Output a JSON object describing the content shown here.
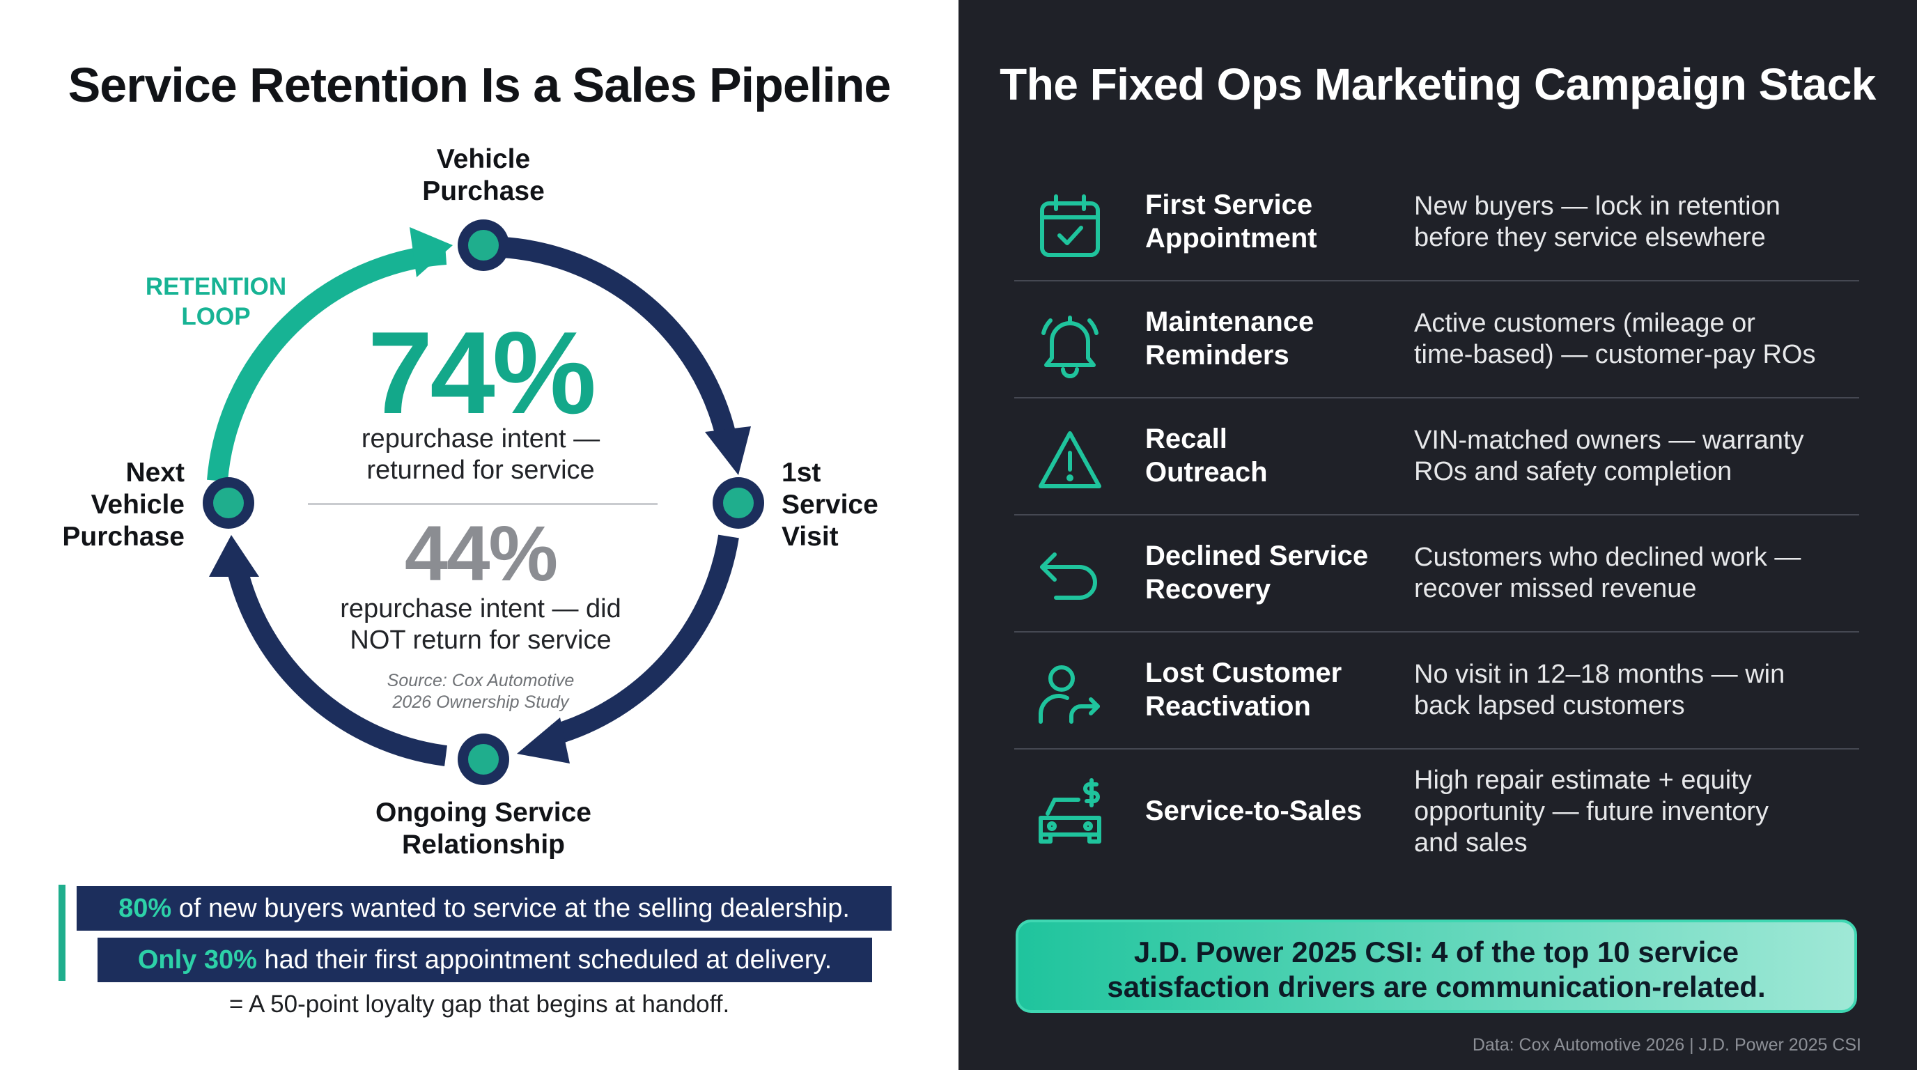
{
  "left": {
    "title": "Service Retention Is a Sales Pipeline",
    "nodes": {
      "top": [
        "Vehicle",
        "Purchase"
      ],
      "right": [
        "1st",
        "Service",
        "Visit"
      ],
      "bottom": [
        "Ongoing Service",
        "Relationship"
      ],
      "left": [
        "Next",
        "Vehicle",
        "Purchase"
      ]
    },
    "loop_label": [
      "RETENTION",
      "LOOP"
    ],
    "stat1": {
      "value": "74%",
      "desc": [
        "repurchase intent —",
        "returned for service"
      ]
    },
    "stat2": {
      "value": "44%",
      "desc": [
        "repurchase intent — did",
        "NOT return for service"
      ]
    },
    "source": [
      "Source: Cox Automotive",
      "2026 Ownership Study"
    ],
    "bar1": {
      "highlight": "80%",
      "text": " of new buyers wanted to service at the selling dealership."
    },
    "bar2": {
      "highlight": "Only 30%",
      "text": " had their first appointment scheduled at delivery."
    },
    "gap_text": "= A 50-point loyalty gap that begins at handoff.",
    "colors": {
      "teal": "#17b394",
      "navy": "#1c2e5c",
      "node_fill": "#1fae8d"
    }
  },
  "right": {
    "title": "The Fixed Ops Marketing Campaign Stack",
    "campaigns": [
      {
        "icon": "calendar-check-icon",
        "name": [
          "First Service",
          "Appointment"
        ],
        "desc": [
          "New buyers — lock in retention",
          "before they service elsewhere"
        ]
      },
      {
        "icon": "bell-icon",
        "name": [
          "Maintenance",
          "Reminders"
        ],
        "desc": [
          "Active customers (mileage or",
          "time-based) — customer-pay ROs"
        ]
      },
      {
        "icon": "warning-triangle-icon",
        "name": [
          "Recall",
          "Outreach"
        ],
        "desc": [
          "VIN-matched owners — warranty",
          "ROs and safety completion"
        ]
      },
      {
        "icon": "undo-arrow-icon",
        "name": [
          "Declined Service",
          "Recovery"
        ],
        "desc": [
          "Customers who declined work —",
          "recover missed revenue"
        ]
      },
      {
        "icon": "user-return-icon",
        "name": [
          "Lost Customer",
          "Reactivation"
        ],
        "desc": [
          "No visit in 12–18 months — win",
          "back lapsed customers"
        ]
      },
      {
        "icon": "car-dollar-icon",
        "name": [
          "Service-to-Sales"
        ],
        "desc": [
          "High repair estimate + equity",
          "opportunity — future inventory",
          "and sales"
        ]
      }
    ],
    "csi": [
      "J.D. Power 2025 CSI: 4 of the top 10 service",
      "satisfaction drivers are communication-related."
    ],
    "footer": "Data: Cox Automotive 2026 | J.D. Power 2025 CSI",
    "colors": {
      "background": "#1f2128",
      "accent": "#1fc49d"
    }
  }
}
